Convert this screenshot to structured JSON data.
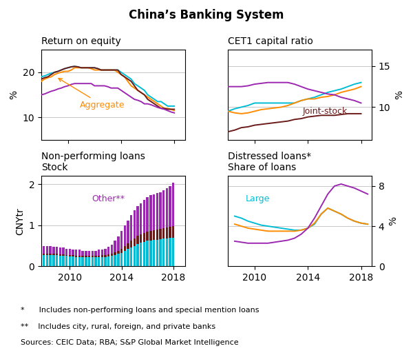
{
  "title": "China’s Banking System",
  "annotations": [
    "*      Includes non-performing loans and special mention loans",
    "**    Includes city, rural, foreign, and private banks",
    "Sources: CEIC Data; RBA; S&P Global Market Intelligence"
  ],
  "chart_data": [
    {
      "type": "line",
      "title": "Return on equity",
      "ylabel": "%",
      "x": [
        2008.0,
        2008.25,
        2008.5,
        2008.75,
        2009.0,
        2009.25,
        2009.5,
        2009.75,
        2010.0,
        2010.25,
        2010.5,
        2010.75,
        2011.0,
        2011.25,
        2011.5,
        2011.75,
        2012.0,
        2012.25,
        2012.5,
        2012.75,
        2013.0,
        2013.25,
        2013.5,
        2013.75,
        2014.0,
        2014.25,
        2014.5,
        2014.75,
        2015.0,
        2015.25,
        2015.5,
        2015.75,
        2016.0,
        2016.25,
        2016.5,
        2016.75,
        2017.0,
        2017.25,
        2017.5,
        2017.75,
        2018.0
      ],
      "series": [
        {
          "color": "#00bcd4",
          "values": [
            19.0,
            19.2,
            19.5,
            19.8,
            20.0,
            20.2,
            20.5,
            20.8,
            21.0,
            21.2,
            21.3,
            21.2,
            21.0,
            21.0,
            21.0,
            21.0,
            21.0,
            20.8,
            20.5,
            20.5,
            20.5,
            20.5,
            20.5,
            20.5,
            20.0,
            19.5,
            19.0,
            18.5,
            17.5,
            17.0,
            16.5,
            16.0,
            15.0,
            14.5,
            14.0,
            13.5,
            13.5,
            13.0,
            12.5,
            12.5,
            12.5
          ]
        },
        {
          "color": "#ff8c00",
          "values": [
            18.0,
            18.5,
            18.8,
            19.0,
            19.5,
            19.8,
            20.0,
            20.2,
            20.2,
            20.5,
            21.0,
            21.0,
            21.0,
            21.0,
            21.0,
            20.8,
            20.5,
            20.5,
            20.5,
            20.5,
            20.5,
            20.5,
            20.5,
            20.0,
            19.5,
            19.0,
            18.0,
            17.0,
            16.5,
            16.0,
            15.5,
            15.0,
            14.5,
            14.0,
            13.5,
            13.0,
            12.5,
            12.0,
            12.0,
            11.8,
            11.5
          ]
        },
        {
          "color": "#6b1a1a",
          "values": [
            18.5,
            18.8,
            19.0,
            19.5,
            20.0,
            20.2,
            20.5,
            20.8,
            21.0,
            21.2,
            21.3,
            21.2,
            21.0,
            21.0,
            21.0,
            21.0,
            21.0,
            20.8,
            20.5,
            20.5,
            20.5,
            20.5,
            20.5,
            20.5,
            19.5,
            19.0,
            18.5,
            18.0,
            17.0,
            16.0,
            15.5,
            15.0,
            14.0,
            13.5,
            13.0,
            12.5,
            12.0,
            12.0,
            11.8,
            11.8,
            11.8
          ]
        },
        {
          "color": "#9c27b0",
          "values": [
            15.0,
            15.2,
            15.5,
            15.8,
            16.0,
            16.3,
            16.5,
            16.8,
            17.0,
            17.3,
            17.5,
            17.5,
            17.5,
            17.5,
            17.5,
            17.5,
            17.0,
            17.0,
            17.0,
            17.0,
            16.8,
            16.5,
            16.5,
            16.5,
            16.0,
            15.5,
            15.0,
            14.5,
            14.0,
            13.8,
            13.5,
            13.0,
            13.0,
            12.8,
            12.5,
            12.2,
            12.0,
            11.8,
            11.5,
            11.2,
            11.0
          ]
        }
      ],
      "xlim": [
        2008,
        2018.8
      ],
      "xticks": [
        2010,
        2014,
        2018
      ],
      "ylim": [
        5,
        25
      ],
      "yticks": [
        10,
        20
      ],
      "grid": true,
      "tick_labels": "y",
      "annotations": [
        {
          "text": "Aggregate",
          "color": "#ff8c00",
          "x": 2009.1,
          "y": 19.0
        }
      ]
    },
    {
      "type": "line",
      "title": "CET1 capital ratio",
      "ylabel": "%",
      "x": [
        2008.0,
        2008.5,
        2009.0,
        2009.5,
        2010.0,
        2010.5,
        2011.0,
        2011.5,
        2012.0,
        2012.5,
        2013.0,
        2013.5,
        2014.0,
        2014.5,
        2015.0,
        2015.5,
        2016.0,
        2016.5,
        2017.0,
        2017.5,
        2018.0
      ],
      "series": [
        {
          "color": "#00bcd4",
          "values": [
            9.5,
            9.8,
            10.0,
            10.2,
            10.5,
            10.5,
            10.5,
            10.5,
            10.5,
            10.5,
            10.5,
            10.8,
            11.0,
            11.2,
            11.5,
            11.8,
            12.0,
            12.2,
            12.5,
            12.8,
            13.0
          ]
        },
        {
          "color": "#ff8c00",
          "values": [
            9.5,
            9.3,
            9.2,
            9.3,
            9.5,
            9.7,
            9.8,
            9.9,
            10.0,
            10.2,
            10.5,
            10.8,
            11.0,
            11.0,
            11.2,
            11.3,
            11.5,
            11.8,
            12.0,
            12.2,
            12.5
          ]
        },
        {
          "color": "#6b1a1a",
          "values": [
            7.0,
            7.2,
            7.5,
            7.6,
            7.8,
            7.9,
            8.0,
            8.1,
            8.2,
            8.3,
            8.5,
            8.6,
            8.8,
            8.9,
            9.0,
            9.0,
            9.0,
            9.1,
            9.2,
            9.2,
            9.2
          ]
        },
        {
          "color": "#9c27b0",
          "values": [
            12.5,
            12.5,
            12.5,
            12.6,
            12.8,
            12.9,
            13.0,
            13.0,
            13.0,
            13.0,
            12.8,
            12.5,
            12.2,
            12.0,
            11.8,
            11.6,
            11.5,
            11.2,
            11.0,
            10.8,
            10.5
          ]
        }
      ],
      "xlim": [
        2008,
        2018.8
      ],
      "xticks": [
        2010,
        2014,
        2018
      ],
      "ylim": [
        6,
        17
      ],
      "yticks": [
        10,
        15
      ],
      "grid": true,
      "tick_labels": "y",
      "annotations": [
        {
          "text": "Joint-stock",
          "color": "#6b1a1a"
        }
      ]
    },
    {
      "type": "bar",
      "stacked": true,
      "title": "Non-performing loans",
      "subtitle": "Stock",
      "ylabel": "CNYtr",
      "x": [
        2008.0,
        2008.25,
        2008.5,
        2008.75,
        2009.0,
        2009.25,
        2009.5,
        2009.75,
        2010.0,
        2010.25,
        2010.5,
        2010.75,
        2011.0,
        2011.25,
        2011.5,
        2011.75,
        2012.0,
        2012.25,
        2012.5,
        2012.75,
        2013.0,
        2013.25,
        2013.5,
        2013.75,
        2014.0,
        2014.25,
        2014.5,
        2014.75,
        2015.0,
        2015.25,
        2015.5,
        2015.75,
        2016.0,
        2016.25,
        2016.5,
        2016.75,
        2017.0,
        2017.25,
        2017.5,
        2017.75,
        2018.0
      ],
      "series": [
        {
          "color": "#00bcd4",
          "values": [
            0.28,
            0.28,
            0.28,
            0.27,
            0.27,
            0.26,
            0.26,
            0.25,
            0.24,
            0.24,
            0.23,
            0.23,
            0.22,
            0.22,
            0.22,
            0.22,
            0.22,
            0.22,
            0.23,
            0.23,
            0.24,
            0.25,
            0.27,
            0.3,
            0.33,
            0.37,
            0.42,
            0.46,
            0.5,
            0.55,
            0.58,
            0.6,
            0.62,
            0.63,
            0.64,
            0.65,
            0.66,
            0.67,
            0.68,
            0.69,
            0.7
          ]
        },
        {
          "color": "#6b1a1a",
          "values": [
            0.03,
            0.03,
            0.03,
            0.03,
            0.03,
            0.03,
            0.03,
            0.03,
            0.03,
            0.03,
            0.03,
            0.03,
            0.03,
            0.03,
            0.03,
            0.03,
            0.03,
            0.04,
            0.04,
            0.04,
            0.05,
            0.06,
            0.07,
            0.08,
            0.1,
            0.12,
            0.14,
            0.16,
            0.18,
            0.19,
            0.2,
            0.21,
            0.22,
            0.23,
            0.24,
            0.24,
            0.25,
            0.26,
            0.27,
            0.27,
            0.28
          ]
        },
        {
          "color": "#9c27b0",
          "values": [
            0.19,
            0.18,
            0.18,
            0.17,
            0.17,
            0.16,
            0.16,
            0.15,
            0.15,
            0.14,
            0.14,
            0.14,
            0.13,
            0.13,
            0.13,
            0.13,
            0.13,
            0.14,
            0.14,
            0.16,
            0.18,
            0.22,
            0.28,
            0.35,
            0.43,
            0.5,
            0.56,
            0.62,
            0.68,
            0.72,
            0.76,
            0.8,
            0.84,
            0.87,
            0.88,
            0.89,
            0.9,
            0.92,
            0.95,
            1.0,
            1.05
          ]
        }
      ],
      "xlim": [
        2007.8,
        2018.9
      ],
      "xticks": [
        2010,
        2014,
        2018
      ],
      "ylim": [
        0,
        2.2
      ],
      "yticks": [
        0,
        1,
        2
      ],
      "grid": true,
      "annotations": [
        {
          "text": "Other**",
          "color": "#9c27b0"
        }
      ]
    },
    {
      "type": "line",
      "title": "Distressed loans*",
      "subtitle": "Share of loans",
      "ylabel": "%",
      "x": [
        2008.5,
        2009.0,
        2009.5,
        2010.0,
        2010.5,
        2011.0,
        2011.5,
        2012.0,
        2012.5,
        2013.0,
        2013.5,
        2014.0,
        2014.5,
        2015.0,
        2015.5,
        2016.0,
        2016.5,
        2017.0,
        2017.5,
        2018.0,
        2018.5
      ],
      "series": [
        {
          "color": "#00bcd4",
          "values": [
            5.0,
            4.8,
            4.5,
            4.3,
            4.1,
            4.0,
            3.9,
            3.8,
            3.7,
            3.6,
            3.6,
            3.8,
            4.2,
            5.2,
            5.8,
            5.5,
            5.2,
            4.8,
            4.5,
            4.3,
            4.2
          ]
        },
        {
          "color": "#ff8c00",
          "values": [
            4.2,
            4.0,
            3.8,
            3.7,
            3.6,
            3.5,
            3.5,
            3.5,
            3.5,
            3.5,
            3.6,
            3.8,
            4.3,
            5.2,
            5.8,
            5.5,
            5.2,
            4.8,
            4.5,
            4.3,
            4.2
          ]
        },
        {
          "color": "#9c27b0",
          "values": [
            2.5,
            2.4,
            2.3,
            2.3,
            2.3,
            2.3,
            2.4,
            2.5,
            2.6,
            2.8,
            3.2,
            3.8,
            4.8,
            6.0,
            7.2,
            8.0,
            8.2,
            8.0,
            7.8,
            7.5,
            7.2
          ]
        }
      ],
      "xlim": [
        2008,
        2018.8
      ],
      "xticks": [
        2010,
        2014,
        2018
      ],
      "ylim": [
        0,
        9
      ],
      "yticks": [
        0,
        4,
        8
      ],
      "grid": true,
      "annotations": [
        {
          "text": "Large",
          "color": "#00bcd4"
        }
      ]
    }
  ]
}
